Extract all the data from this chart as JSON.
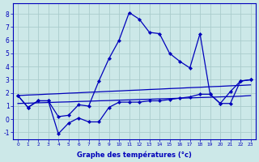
{
  "xlabel": "Graphe des températures (°c)",
  "bg_color": "#cce8e8",
  "grid_color": "#aacccc",
  "line_color": "#0000bb",
  "x": [
    0,
    1,
    2,
    3,
    4,
    5,
    6,
    7,
    8,
    9,
    10,
    11,
    12,
    13,
    14,
    15,
    16,
    17,
    18,
    19,
    20,
    21,
    22,
    23
  ],
  "curve_main": [
    1.8,
    0.9,
    1.4,
    1.4,
    0.2,
    0.3,
    1.1,
    1.0,
    2.9,
    4.6,
    6.0,
    8.1,
    7.6,
    6.6,
    6.5,
    5.0,
    4.4,
    3.9,
    6.5,
    1.9,
    1.2,
    2.1,
    2.9,
    3.0
  ],
  "curve_low": [
    1.8,
    0.9,
    1.4,
    1.4,
    -1.1,
    -0.3,
    0.1,
    -0.2,
    -0.2,
    0.9,
    1.3,
    1.3,
    1.3,
    1.4,
    1.4,
    1.5,
    1.6,
    1.7,
    1.9,
    1.9,
    1.2,
    1.2,
    2.9,
    3.0
  ],
  "trend_low": [
    1.2,
    1.22,
    1.25,
    1.27,
    1.3,
    1.32,
    1.35,
    1.37,
    1.4,
    1.42,
    1.45,
    1.47,
    1.5,
    1.52,
    1.55,
    1.57,
    1.6,
    1.62,
    1.65,
    1.67,
    1.7,
    1.72,
    1.75,
    1.8
  ],
  "trend_high": [
    1.8,
    1.84,
    1.87,
    1.91,
    1.94,
    1.98,
    2.01,
    2.05,
    2.08,
    2.12,
    2.15,
    2.19,
    2.22,
    2.26,
    2.29,
    2.33,
    2.36,
    2.4,
    2.43,
    2.47,
    2.5,
    2.54,
    2.57,
    2.61
  ],
  "ylim": [
    -1.5,
    8.8
  ],
  "yticks": [
    -1,
    0,
    1,
    2,
    3,
    4,
    5,
    6,
    7,
    8
  ],
  "figsize": [
    3.2,
    2.0
  ],
  "dpi": 100
}
